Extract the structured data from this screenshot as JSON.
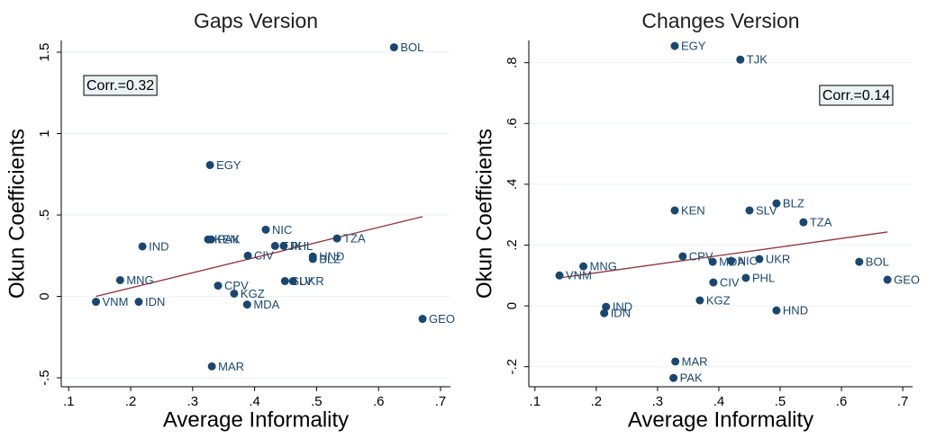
{
  "chart_data": [
    {
      "type": "scatter",
      "title": "Gaps Version",
      "x_label": "Average Informality",
      "y_label": "Okun Coefficients",
      "labels": [
        "BOL",
        "EGY",
        "NIC",
        "KEN",
        "PAK",
        "IND",
        "TZA",
        "TJK",
        "PHL",
        "HND",
        "BLZ",
        "CIV",
        "MNG",
        "SLV",
        "UKR",
        "CPV",
        "KGZ",
        "VNM",
        "IDN",
        "MDA",
        "GEO",
        "MAR"
      ],
      "x": [
        0.625,
        0.328,
        0.418,
        0.325,
        0.33,
        0.219,
        0.533,
        0.433,
        0.447,
        0.494,
        0.494,
        0.389,
        0.183,
        0.449,
        0.462,
        0.341,
        0.367,
        0.144,
        0.213,
        0.388,
        0.671,
        0.331
      ],
      "values": [
        1.53,
        0.807,
        0.41,
        0.35,
        0.35,
        0.307,
        0.356,
        0.31,
        0.31,
        0.245,
        0.23,
        0.25,
        0.1,
        0.094,
        0.094,
        0.066,
        0.017,
        -0.033,
        -0.033,
        -0.05,
        -0.138,
        -0.43
      ],
      "color": "#1a476f",
      "fit": {
        "x": [
          0.144,
          0.671
        ],
        "y": [
          0.0,
          0.49
        ],
        "color": "#90353b"
      },
      "annotation": "Corr.=0.32",
      "annotation_corner": "upper left",
      "xlim": [
        0.088,
        0.716
      ],
      "ylim": [
        -0.555,
        1.572
      ],
      "xticks": [
        {
          "value": 0.1,
          "label": ".1"
        },
        {
          "value": 0.2,
          "label": ".2"
        },
        {
          "value": 0.3,
          "label": ".3"
        },
        {
          "value": 0.4,
          "label": ".4"
        },
        {
          "value": 0.5,
          "label": ".5"
        },
        {
          "value": 0.6,
          "label": ".6"
        },
        {
          "value": 0.7,
          "label": ".7"
        }
      ],
      "yticks": [
        {
          "value": -0.5,
          "label": "-.5"
        },
        0,
        {
          "value": 0.5,
          "label": ".5"
        },
        1,
        1.5
      ],
      "grid": true
    },
    {
      "type": "scatter",
      "title": "Changes Version",
      "x_label": "Average Informality",
      "y_label": "Okun Coefficients",
      "labels": [
        "EGY",
        "TJK",
        "BLZ",
        "KEN",
        "SLV",
        "TZA",
        "CPV",
        "MNG",
        "MDA",
        "NIC",
        "UKR",
        "BOL",
        "VNM",
        "CIV",
        "PHL",
        "GEO",
        "IND",
        "IDN",
        "KGZ",
        "HND",
        "MAR",
        "PAK"
      ],
      "x": [
        0.328,
        0.435,
        0.494,
        0.328,
        0.45,
        0.538,
        0.341,
        0.179,
        0.39,
        0.42,
        0.466,
        0.629,
        0.14,
        0.391,
        0.444,
        0.675,
        0.216,
        0.213,
        0.369,
        0.494,
        0.329,
        0.326
      ],
      "values": [
        0.855,
        0.81,
        0.337,
        0.314,
        0.314,
        0.275,
        0.163,
        0.13,
        0.145,
        0.148,
        0.154,
        0.145,
        0.1,
        0.077,
        0.092,
        0.086,
        -0.003,
        -0.024,
        0.018,
        -0.015,
        -0.183,
        -0.237
      ],
      "color": "#1a476f",
      "fit": {
        "x": [
          0.14,
          0.675
        ],
        "y": [
          0.092,
          0.243
        ],
        "color": "#90353b"
      },
      "annotation": "Corr.=0.14",
      "annotation_corner": "upper right",
      "xlim": [
        0.09,
        0.716
      ],
      "ylim": [
        -0.266,
        0.873
      ],
      "xticks": [
        {
          "value": 0.1,
          "label": ".1"
        },
        {
          "value": 0.2,
          "label": ".2"
        },
        {
          "value": 0.3,
          "label": ".3"
        },
        {
          "value": 0.4,
          "label": ".4"
        },
        {
          "value": 0.5,
          "label": ".5"
        },
        {
          "value": 0.6,
          "label": ".6"
        },
        {
          "value": 0.7,
          "label": ".7"
        }
      ],
      "yticks": [
        {
          "value": -0.2,
          "label": "-.2"
        },
        0,
        {
          "value": 0.2,
          "label": ".2"
        },
        {
          "value": 0.4,
          "label": ".4"
        },
        {
          "value": 0.6,
          "label": ".6"
        },
        {
          "value": 0.8,
          "label": ".8"
        }
      ],
      "grid": true
    }
  ]
}
